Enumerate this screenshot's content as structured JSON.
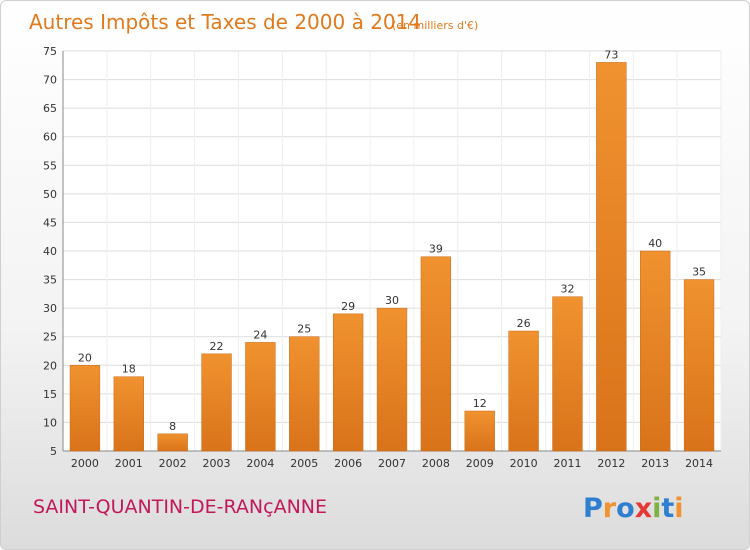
{
  "chart_data": {
    "type": "bar",
    "title": "Autres Impôts et Taxes de 2000 à 2014",
    "subtitle": "(en milliers d'€)",
    "categories": [
      "2000",
      "2001",
      "2002",
      "2003",
      "2004",
      "2005",
      "2006",
      "2007",
      "2008",
      "2009",
      "2010",
      "2011",
      "2012",
      "2013",
      "2014"
    ],
    "values": [
      20,
      18,
      8,
      22,
      24,
      25,
      29,
      30,
      39,
      12,
      26,
      32,
      73,
      40,
      35
    ],
    "ylim": [
      5,
      75
    ],
    "yticks": [
      5,
      10,
      15,
      20,
      25,
      30,
      35,
      40,
      45,
      50,
      55,
      60,
      65,
      70,
      75
    ],
    "grid": true,
    "bar_color": "#f0922f",
    "bar_color_dark": "#d9731a"
  },
  "location": "SAINT-QUANTIN-DE-RANçANNE",
  "brand": {
    "letters": [
      "P",
      "r",
      "o",
      "x",
      "i",
      "t",
      "i"
    ],
    "colors": [
      "#2f7fd0",
      "#f0922f",
      "#2f7fd0",
      "#e53935",
      "#7cb342",
      "#2f7fd0",
      "#f0922f"
    ]
  }
}
